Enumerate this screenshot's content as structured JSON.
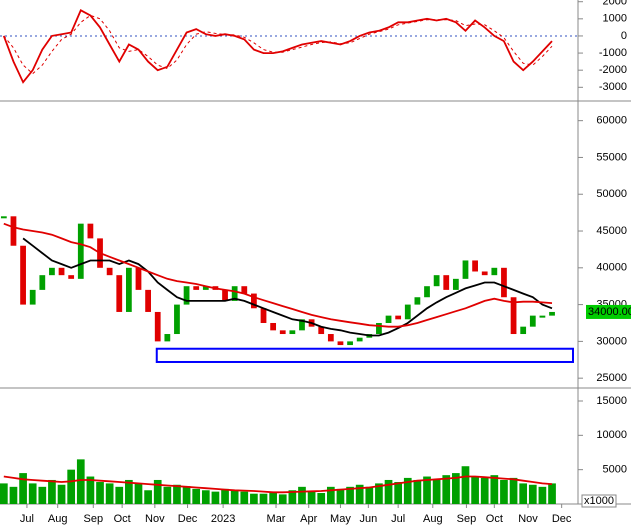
{
  "chart_data": [
    {
      "type": "line",
      "xlim": [
        -0.4,
        59.7
      ],
      "ylim": [
        -3800,
        2100
      ],
      "yticks": [
        2000,
        1000,
        0,
        -1000,
        -2000,
        -3000
      ],
      "reference_line": 0,
      "series": [
        {
          "style": "solid",
          "color": "#e00000",
          "values": [
            0,
            -1500,
            -2700,
            -2000,
            -800,
            0,
            100,
            200,
            1500,
            1200,
            500,
            -500,
            -1500,
            -500,
            -800,
            -1500,
            -2000,
            -1800,
            -800,
            200,
            400,
            100,
            0,
            100,
            0,
            -200,
            -800,
            -1000,
            -1000,
            -900,
            -700,
            -500,
            -400,
            -300,
            -400,
            -500,
            -300,
            0,
            200,
            300,
            500,
            800,
            800,
            900,
            1000,
            900,
            1000,
            800,
            300,
            900,
            500,
            0,
            -300,
            -1500,
            -2000,
            -1500,
            -900,
            -300
          ]
        },
        {
          "style": "dashed",
          "color": "#e00000",
          "values": [
            0,
            -700,
            -1700,
            -2200,
            -1700,
            -900,
            -200,
            100,
            800,
            1200,
            1000,
            300,
            -700,
            -900,
            -800,
            -1200,
            -1700,
            -1900,
            -1400,
            -500,
            100,
            250,
            150,
            80,
            60,
            -80,
            -400,
            -800,
            -950,
            -950,
            -800,
            -650,
            -500,
            -380,
            -350,
            -450,
            -400,
            -150,
            100,
            250,
            400,
            650,
            750,
            850,
            950,
            950,
            950,
            900,
            600,
            700,
            650,
            300,
            -100,
            -900,
            -1600,
            -1700,
            -1200,
            -600
          ]
        }
      ]
    },
    {
      "type": "candlestick",
      "xlim": [
        -0.4,
        59.7
      ],
      "ylim": [
        23800,
        62400
      ],
      "yticks": [
        60000,
        55000,
        50000,
        45000,
        40000,
        35000,
        30000,
        25000
      ],
      "support_zone": [
        27200,
        29000
      ],
      "zone_color": "#0000ff",
      "last_price": {
        "value": 34000,
        "label": "34000.00"
      },
      "last_price_color": "#00cc00",
      "series": [
        {
          "style": "candle",
          "up_color": "#00a000",
          "down_color": "#e00000",
          "values": [
            47000,
            43000,
            35000,
            37000,
            39000,
            40000,
            39000,
            38500,
            46000,
            44000,
            40000,
            39000,
            34000,
            40000,
            37000,
            34000,
            30000,
            31000,
            35000,
            37500,
            37000,
            37500,
            37000,
            35500,
            37500,
            36500,
            34500,
            32500,
            31500,
            31000,
            31500,
            33000,
            32000,
            31000,
            30000,
            29500,
            30000,
            30500,
            31000,
            32500,
            33500,
            33000,
            35000,
            36000,
            37500,
            39000,
            37000,
            38500,
            41000,
            39500,
            39000,
            40000,
            36000,
            31000,
            32000,
            33500,
            33500,
            34000
          ]
        },
        {
          "style": "solid",
          "color": "#000000",
          "values": [
            null,
            null,
            44000,
            43000,
            42000,
            41000,
            40500,
            40000,
            40500,
            41000,
            41000,
            41000,
            40500,
            41000,
            40500,
            39500,
            38000,
            37000,
            36000,
            35500,
            35500,
            35500,
            35500,
            35500,
            35800,
            35500,
            35000,
            34500,
            34000,
            33500,
            33000,
            32800,
            32500,
            32000,
            31700,
            31500,
            31200,
            31000,
            30800,
            30800,
            31200,
            31800,
            32500,
            33500,
            34500,
            35300,
            36000,
            36600,
            37200,
            37600,
            38000,
            38000,
            37500,
            37000,
            36500,
            36000,
            35000,
            34500
          ]
        },
        {
          "style": "solid",
          "color": "#e00000",
          "values": [
            46000,
            45500,
            45200,
            45000,
            44800,
            44500,
            44000,
            43500,
            43200,
            42800,
            42000,
            41500,
            41000,
            40500,
            40000,
            39500,
            39000,
            38500,
            38200,
            38000,
            37800,
            37500,
            37200,
            37000,
            36800,
            36500,
            36000,
            35600,
            35200,
            34800,
            34400,
            34000,
            33600,
            33300,
            33000,
            32800,
            32600,
            32400,
            32200,
            32100,
            32000,
            32000,
            32200,
            32500,
            32900,
            33300,
            33700,
            34100,
            34500,
            35000,
            35500,
            35800,
            35500,
            35300,
            35400,
            35400,
            35300,
            35200
          ]
        }
      ]
    },
    {
      "type": "bar",
      "xlim": [
        -0.4,
        59.7
      ],
      "ylim": [
        0,
        16600
      ],
      "yticks": [
        15000,
        10000,
        5000
      ],
      "unit_label": "x1000",
      "xticks": [
        {
          "value": 2.4,
          "label": "Jul"
        },
        {
          "value": 5.6,
          "label": "Aug"
        },
        {
          "value": 9.3,
          "label": "Sep"
        },
        {
          "value": 12.3,
          "label": "Oct"
        },
        {
          "value": 15.7,
          "label": "Nov"
        },
        {
          "value": 19.1,
          "label": "Dec"
        },
        {
          "value": 22.8,
          "label": "2023"
        },
        {
          "value": 28.3,
          "label": "Mar"
        },
        {
          "value": 31.7,
          "label": "Apr"
        },
        {
          "value": 35,
          "label": "May"
        },
        {
          "value": 37.9,
          "label": "Jun"
        },
        {
          "value": 41,
          "label": "Jul"
        },
        {
          "value": 44.6,
          "label": "Aug"
        },
        {
          "value": 48.1,
          "label": "Sep"
        },
        {
          "value": 51,
          "label": "Oct"
        },
        {
          "value": 54.5,
          "label": "Nov"
        },
        {
          "value": 58,
          "label": "Dec"
        }
      ],
      "series": [
        {
          "style": "bar",
          "color": "#00a000",
          "values": [
            3000,
            2500,
            4500,
            3000,
            2500,
            3500,
            2800,
            5000,
            6500,
            4000,
            3200,
            3000,
            2500,
            3500,
            3000,
            2000,
            3500,
            2500,
            2800,
            2600,
            2200,
            2000,
            1800,
            2200,
            2000,
            1800,
            1500,
            1500,
            1600,
            1400,
            2000,
            2500,
            1800,
            1600,
            2500,
            2200,
            2500,
            2800,
            2500,
            3000,
            3500,
            3200,
            3800,
            3500,
            4000,
            3600,
            4200,
            4500,
            5500,
            4000,
            3800,
            4200,
            3500,
            3800,
            3000,
            2800,
            2500,
            3000
          ]
        },
        {
          "style": "solid",
          "color": "#e00000",
          "values": [
            4000,
            3800,
            3600,
            3500,
            3400,
            3300,
            3200,
            3300,
            3500,
            3500,
            3400,
            3300,
            3200,
            3100,
            3000,
            2900,
            2800,
            2700,
            2600,
            2500,
            2400,
            2300,
            2200,
            2100,
            2000,
            1950,
            1900,
            1800,
            1700,
            1700,
            1750,
            1800,
            1850,
            1900,
            2000,
            2100,
            2200,
            2300,
            2400,
            2600,
            2800,
            3000,
            3200,
            3400,
            3500,
            3600,
            3700,
            3800,
            4000,
            4000,
            3900,
            3800,
            3700,
            3600,
            3400,
            3200,
            3000,
            2900
          ]
        }
      ]
    }
  ]
}
